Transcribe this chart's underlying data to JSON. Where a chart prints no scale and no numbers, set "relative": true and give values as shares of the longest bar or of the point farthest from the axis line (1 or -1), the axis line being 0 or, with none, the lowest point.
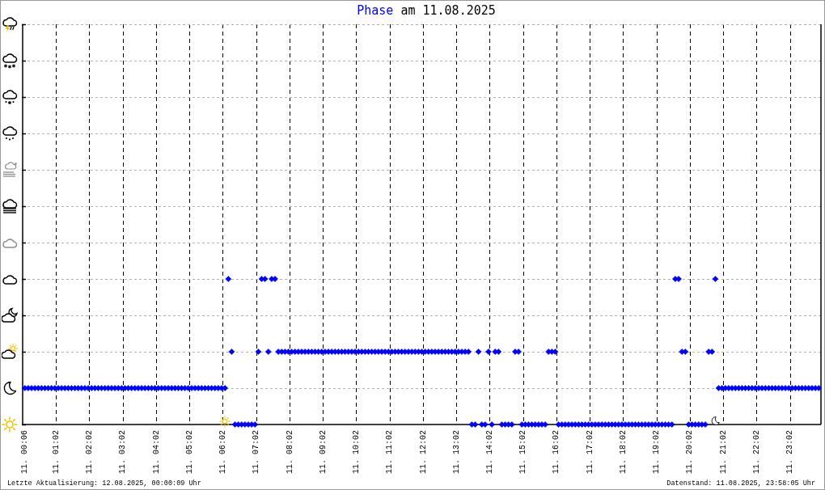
{
  "chart_data": {
    "type": "scatter",
    "title": "Phase am 11.08.2025",
    "annotations": [
      "Letzte Aktualisierung: 12.08.2025, 00:00:09 Uhr",
      "Datenstand: 11.08.2025, 23:58:05 Uhr"
    ],
    "xlim": [
      "2025-08-11T00:02",
      "2025-08-11T23:58"
    ],
    "xticks": [
      {
        "value": "2025-08-11T00:06",
        "label": "11. 00:06"
      },
      {
        "value": "2025-08-11T01:02",
        "label": "11. 01:02"
      },
      {
        "value": "2025-08-11T02:02",
        "label": "11. 02:02"
      },
      {
        "value": "2025-08-11T03:02",
        "label": "11. 03:02"
      },
      {
        "value": "2025-08-11T04:02",
        "label": "11. 04:02"
      },
      {
        "value": "2025-08-11T05:02",
        "label": "11. 05:02"
      },
      {
        "value": "2025-08-11T06:02",
        "label": "11. 06:02"
      },
      {
        "value": "2025-08-11T07:02",
        "label": "11. 07:02"
      },
      {
        "value": "2025-08-11T08:02",
        "label": "11. 08:02"
      },
      {
        "value": "2025-08-11T09:02",
        "label": "11. 09:02"
      },
      {
        "value": "2025-08-11T10:02",
        "label": "11. 10:02"
      },
      {
        "value": "2025-08-11T11:02",
        "label": "11. 11:02"
      },
      {
        "value": "2025-08-11T12:02",
        "label": "11. 12:02"
      },
      {
        "value": "2025-08-11T13:02",
        "label": "11. 13:02"
      },
      {
        "value": "2025-08-11T14:02",
        "label": "11. 14:02"
      },
      {
        "value": "2025-08-11T15:02",
        "label": "11. 15:02"
      },
      {
        "value": "2025-08-11T16:02",
        "label": "11. 16:02"
      },
      {
        "value": "2025-08-11T17:02",
        "label": "11. 17:02"
      },
      {
        "value": "2025-08-11T18:02",
        "label": "11. 18:02"
      },
      {
        "value": "2025-08-11T19:02",
        "label": "11. 19:02"
      },
      {
        "value": "2025-08-11T20:02",
        "label": "11. 20:02"
      },
      {
        "value": "2025-08-11T21:02",
        "label": "11. 21:02"
      },
      {
        "value": "2025-08-11T22:02",
        "label": "11. 22:02"
      },
      {
        "value": "2025-08-11T23:02",
        "label": "11. 23:02"
      }
    ],
    "relative": true,
    "tick_labels": "x",
    "grid": true,
    "marker": "diamond",
    "series": [
      {
        "color": "#0000ff",
        "x": [
          "2025-08-11T00:06",
          "2025-08-11T00:12",
          "2025-08-11T00:18",
          "2025-08-11T00:24",
          "2025-08-11T00:30",
          "2025-08-11T00:36",
          "2025-08-11T00:42",
          "2025-08-11T00:48",
          "2025-08-11T00:54",
          "2025-08-11T01:00",
          "2025-08-11T01:06",
          "2025-08-11T01:12",
          "2025-08-11T01:18",
          "2025-08-11T01:24",
          "2025-08-11T01:30",
          "2025-08-11T01:36",
          "2025-08-11T01:42",
          "2025-08-11T01:48",
          "2025-08-11T01:54",
          "2025-08-11T02:00",
          "2025-08-11T02:06",
          "2025-08-11T02:12",
          "2025-08-11T02:18",
          "2025-08-11T02:24",
          "2025-08-11T02:30",
          "2025-08-11T02:36",
          "2025-08-11T02:42",
          "2025-08-11T02:48",
          "2025-08-11T02:54",
          "2025-08-11T03:00",
          "2025-08-11T03:06",
          "2025-08-11T03:12",
          "2025-08-11T03:18",
          "2025-08-11T03:24",
          "2025-08-11T03:30",
          "2025-08-11T03:36",
          "2025-08-11T03:42",
          "2025-08-11T03:48",
          "2025-08-11T03:54",
          "2025-08-11T04:00",
          "2025-08-11T04:06",
          "2025-08-11T04:12",
          "2025-08-11T04:18",
          "2025-08-11T04:24",
          "2025-08-11T04:30",
          "2025-08-11T04:36",
          "2025-08-11T04:42",
          "2025-08-11T04:48",
          "2025-08-11T04:54",
          "2025-08-11T05:00",
          "2025-08-11T05:06",
          "2025-08-11T05:12",
          "2025-08-11T05:18",
          "2025-08-11T05:24",
          "2025-08-11T05:30",
          "2025-08-11T05:36",
          "2025-08-11T05:42",
          "2025-08-11T05:48",
          "2025-08-11T05:54",
          "2025-08-11T06:00",
          "2025-08-11T06:06",
          "2025-08-11T06:12",
          "2025-08-11T06:18",
          "2025-08-11T06:24",
          "2025-08-11T06:30",
          "2025-08-11T06:36",
          "2025-08-11T06:42",
          "2025-08-11T06:48",
          "2025-08-11T06:54",
          "2025-08-11T07:00",
          "2025-08-11T07:06",
          "2025-08-11T07:12",
          "2025-08-11T07:18",
          "2025-08-11T07:24",
          "2025-08-11T07:30",
          "2025-08-11T07:36",
          "2025-08-11T07:42",
          "2025-08-11T07:48",
          "2025-08-11T07:54",
          "2025-08-11T08:00",
          "2025-08-11T08:06",
          "2025-08-11T08:12",
          "2025-08-11T08:18",
          "2025-08-11T08:24",
          "2025-08-11T08:30",
          "2025-08-11T08:36",
          "2025-08-11T08:42",
          "2025-08-11T08:48",
          "2025-08-11T08:54",
          "2025-08-11T09:00",
          "2025-08-11T09:06",
          "2025-08-11T09:12",
          "2025-08-11T09:18",
          "2025-08-11T09:24",
          "2025-08-11T09:30",
          "2025-08-11T09:36",
          "2025-08-11T09:42",
          "2025-08-11T09:48",
          "2025-08-11T09:54",
          "2025-08-11T10:00",
          "2025-08-11T10:06",
          "2025-08-11T10:12",
          "2025-08-11T10:18",
          "2025-08-11T10:24",
          "2025-08-11T10:30",
          "2025-08-11T10:36",
          "2025-08-11T10:42",
          "2025-08-11T10:48",
          "2025-08-11T10:54",
          "2025-08-11T11:00",
          "2025-08-11T11:06",
          "2025-08-11T11:12",
          "2025-08-11T11:18",
          "2025-08-11T11:24",
          "2025-08-11T11:30",
          "2025-08-11T11:36",
          "2025-08-11T11:42",
          "2025-08-11T11:48",
          "2025-08-11T11:54",
          "2025-08-11T12:00",
          "2025-08-11T12:06",
          "2025-08-11T12:12",
          "2025-08-11T12:18",
          "2025-08-11T12:24",
          "2025-08-11T12:30",
          "2025-08-11T12:36",
          "2025-08-11T12:42",
          "2025-08-11T12:48",
          "2025-08-11T12:54",
          "2025-08-11T13:00",
          "2025-08-11T13:06",
          "2025-08-11T13:12",
          "2025-08-11T13:18",
          "2025-08-11T13:24",
          "2025-08-11T13:30",
          "2025-08-11T13:36",
          "2025-08-11T13:42",
          "2025-08-11T13:48",
          "2025-08-11T13:54",
          "2025-08-11T14:00",
          "2025-08-11T14:06",
          "2025-08-11T14:12",
          "2025-08-11T14:18",
          "2025-08-11T14:24",
          "2025-08-11T14:30",
          "2025-08-11T14:36",
          "2025-08-11T14:42",
          "2025-08-11T14:48",
          "2025-08-11T14:54",
          "2025-08-11T15:00",
          "2025-08-11T15:06",
          "2025-08-11T15:12",
          "2025-08-11T15:18",
          "2025-08-11T15:24",
          "2025-08-11T15:30",
          "2025-08-11T15:36",
          "2025-08-11T15:42",
          "2025-08-11T15:48",
          "2025-08-11T15:54",
          "2025-08-11T16:00",
          "2025-08-11T16:06",
          "2025-08-11T16:12",
          "2025-08-11T16:18",
          "2025-08-11T16:24",
          "2025-08-11T16:30",
          "2025-08-11T16:36",
          "2025-08-11T16:42",
          "2025-08-11T16:48",
          "2025-08-11T16:54",
          "2025-08-11T17:00",
          "2025-08-11T17:06",
          "2025-08-11T17:12",
          "2025-08-11T17:18",
          "2025-08-11T17:24",
          "2025-08-11T17:30",
          "2025-08-11T17:36",
          "2025-08-11T17:42",
          "2025-08-11T17:48",
          "2025-08-11T17:54",
          "2025-08-11T18:00",
          "2025-08-11T18:06",
          "2025-08-11T18:12",
          "2025-08-11T18:18",
          "2025-08-11T18:24",
          "2025-08-11T18:30",
          "2025-08-11T18:36",
          "2025-08-11T18:42",
          "2025-08-11T18:48",
          "2025-08-11T18:54",
          "2025-08-11T19:00",
          "2025-08-11T19:06",
          "2025-08-11T19:12",
          "2025-08-11T19:18",
          "2025-08-11T19:24",
          "2025-08-11T19:30",
          "2025-08-11T19:36",
          "2025-08-11T19:42",
          "2025-08-11T19:48",
          "2025-08-11T19:54",
          "2025-08-11T20:00",
          "2025-08-11T20:06",
          "2025-08-11T20:12",
          "2025-08-11T20:18",
          "2025-08-11T20:24",
          "2025-08-11T20:30",
          "2025-08-11T20:36",
          "2025-08-11T20:42",
          "2025-08-11T20:48",
          "2025-08-11T20:54",
          "2025-08-11T21:00",
          "2025-08-11T21:06",
          "2025-08-11T21:12",
          "2025-08-11T21:18",
          "2025-08-11T21:24",
          "2025-08-11T21:30",
          "2025-08-11T21:36",
          "2025-08-11T21:42",
          "2025-08-11T21:48",
          "2025-08-11T21:54",
          "2025-08-11T22:00",
          "2025-08-11T22:06",
          "2025-08-11T22:12",
          "2025-08-11T22:18",
          "2025-08-11T22:24",
          "2025-08-11T22:30",
          "2025-08-11T22:36",
          "2025-08-11T22:42",
          "2025-08-11T22:48",
          "2025-08-11T22:54",
          "2025-08-11T23:00",
          "2025-08-11T23:06",
          "2025-08-11T23:12",
          "2025-08-11T23:18",
          "2025-08-11T23:24",
          "2025-08-11T23:30",
          "2025-08-11T23:36",
          "2025-08-11T23:42",
          "2025-08-11T23:48",
          "2025-08-11T23:54"
        ],
        "values": [
          0.25,
          0.25,
          0.25,
          0.25,
          0.25,
          0.25,
          0.25,
          0.25,
          0.25,
          0.25,
          0.25,
          0.25,
          0.25,
          0.25,
          0.25,
          0.25,
          0.25,
          0.25,
          0.25,
          0.25,
          0.25,
          0.25,
          0.25,
          0.25,
          0.25,
          0.25,
          0.25,
          0.25,
          0.25,
          0.25,
          0.25,
          0.25,
          0.25,
          0.25,
          0.25,
          0.25,
          0.25,
          0.25,
          0.25,
          0.25,
          0.25,
          0.25,
          0.25,
          0.25,
          0.25,
          0.25,
          0.25,
          0.25,
          0.25,
          0.25,
          0.25,
          0.25,
          0.25,
          0.25,
          0.25,
          0.25,
          0.25,
          0.25,
          0.25,
          0.25,
          0.25,
          1,
          0.5,
          0,
          0,
          0,
          0,
          0,
          0,
          0,
          0.5,
          1,
          1,
          0.5,
          1,
          1,
          0.5,
          0.5,
          0.5,
          0.5,
          0.5,
          0.5,
          0.5,
          0.5,
          0.5,
          0.5,
          0.5,
          0.5,
          0.5,
          0.5,
          0.5,
          0.5,
          0.5,
          0.5,
          0.5,
          0.5,
          0.5,
          0.5,
          0.5,
          0.5,
          0.5,
          0.5,
          0.5,
          0.5,
          0.5,
          0.5,
          0.5,
          0.5,
          0.5,
          0.5,
          0.5,
          0.5,
          0.5,
          0.5,
          0.5,
          0.5,
          0.5,
          0.5,
          0.5,
          0.5,
          0.5,
          0.5,
          0.5,
          0.5,
          0.5,
          0.5,
          0.5,
          0.5,
          0.5,
          0.5,
          0.5,
          0.5,
          0.5,
          0.5,
          0,
          0,
          0.5,
          0,
          0,
          0.5,
          0,
          0.5,
          0.5,
          0,
          0,
          0,
          0,
          0.5,
          0.5,
          0,
          0,
          0,
          0,
          0,
          0,
          0,
          0,
          0.5,
          0.5,
          0.5,
          0,
          0,
          0,
          0,
          0,
          0,
          0,
          0,
          0,
          0,
          0,
          0,
          0,
          0,
          0,
          0,
          0,
          0,
          0,
          0,
          0,
          0,
          0,
          0,
          0,
          0,
          0,
          0,
          0,
          0,
          0,
          0,
          0,
          0,
          0,
          1,
          1,
          0.5,
          0.5,
          0,
          0,
          0,
          0,
          0,
          0,
          0.5,
          0.5,
          1,
          0.25,
          0.25,
          0.25,
          0.25,
          0.25,
          0.25,
          0.25,
          0.25,
          0.25,
          0.25,
          0.25,
          0.25,
          0.25,
          0.25,
          0.25,
          0.25,
          0.25,
          0.25,
          0.25,
          0.25,
          0.25,
          0.25,
          0.25,
          0.25,
          0.25,
          0.25,
          0.25,
          0.25,
          0.25,
          0.25,
          0.25
        ]
      }
    ]
  }
}
